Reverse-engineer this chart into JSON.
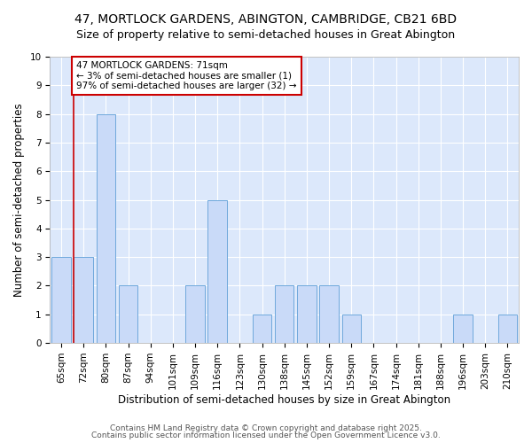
{
  "title1": "47, MORTLOCK GARDENS, ABINGTON, CAMBRIDGE, CB21 6BD",
  "title2": "Size of property relative to semi-detached houses in Great Abington",
  "xlabel": "Distribution of semi-detached houses by size in Great Abington",
  "ylabel": "Number of semi-detached properties",
  "categories": [
    "65sqm",
    "72sqm",
    "80sqm",
    "87sqm",
    "94sqm",
    "101sqm",
    "109sqm",
    "116sqm",
    "123sqm",
    "130sqm",
    "138sqm",
    "145sqm",
    "152sqm",
    "159sqm",
    "167sqm",
    "174sqm",
    "181sqm",
    "188sqm",
    "196sqm",
    "203sqm",
    "210sqm"
  ],
  "values": [
    3,
    3,
    8,
    2,
    0,
    0,
    2,
    5,
    0,
    1,
    2,
    2,
    2,
    1,
    0,
    0,
    0,
    0,
    1,
    0,
    1
  ],
  "bar_color": "#c9daf8",
  "bar_edge_color": "#6fa8dc",
  "plot_bg_color": "#dce8fb",
  "grid_color": "#ffffff",
  "background_color": "#ffffff",
  "red_line_index": 1,
  "annotation_text": "47 MORTLOCK GARDENS: 71sqm\n← 3% of semi-detached houses are smaller (1)\n97% of semi-detached houses are larger (32) →",
  "annotation_box_color": "#ffffff",
  "annotation_box_edge_color": "#cc0000",
  "footer1": "Contains HM Land Registry data © Crown copyright and database right 2025.",
  "footer2": "Contains public sector information licensed under the Open Government Licence v3.0.",
  "ylim": [
    0,
    10
  ],
  "title_fontsize": 10,
  "subtitle_fontsize": 9,
  "tick_fontsize": 7.5,
  "ylabel_fontsize": 8.5,
  "xlabel_fontsize": 8.5,
  "footer_fontsize": 6.5,
  "annot_fontsize": 7.5
}
